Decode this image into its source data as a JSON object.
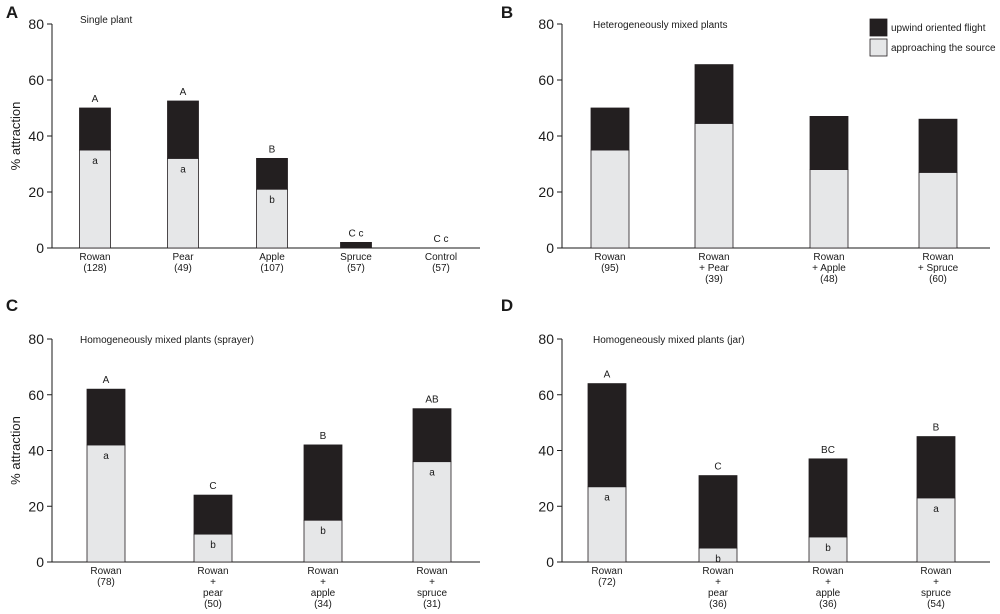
{
  "colors": {
    "upwind": "#231f20",
    "approach": "#e6e7e8",
    "outline": "#231f20"
  },
  "legend": {
    "upwind": "upwind oriented flight",
    "approach": "approaching the source"
  },
  "chart_data": [
    {
      "panel": "A",
      "title": "Single plant",
      "type": "bar",
      "stacked": true,
      "ylabel": "% attraction",
      "ylim": [
        0,
        80
      ],
      "yticks": [
        0,
        20,
        40,
        60,
        80
      ],
      "categories": [
        {
          "lines": [
            "Rowan",
            "(128)"
          ]
        },
        {
          "lines": [
            "Pear",
            "(49)"
          ]
        },
        {
          "lines": [
            "Apple",
            "(107)"
          ]
        },
        {
          "lines": [
            "Spruce",
            "(57)"
          ]
        },
        {
          "lines": [
            "Control",
            "(57)"
          ]
        }
      ],
      "series": [
        {
          "name": "approaching the source",
          "values": [
            35,
            32,
            21,
            0,
            0
          ]
        },
        {
          "name": "upwind oriented flight",
          "values": [
            15,
            20.5,
            11,
            2,
            0
          ]
        }
      ],
      "totals": [
        50,
        52.5,
        32,
        2,
        0
      ],
      "top_letters": [
        "A",
        "A",
        "B",
        "C c",
        "C c"
      ],
      "inner_letters": [
        "a",
        "a",
        "b",
        "",
        ""
      ]
    },
    {
      "panel": "B",
      "title": "Heterogeneously mixed plants",
      "type": "bar",
      "stacked": true,
      "ylabel": "",
      "ylim": [
        0,
        80
      ],
      "yticks": [
        0,
        20,
        40,
        60,
        80
      ],
      "categories": [
        {
          "lines": [
            "Rowan",
            "(95)"
          ]
        },
        {
          "lines": [
            "Rowan",
            "+ Pear",
            "(39)"
          ]
        },
        {
          "lines": [
            "Rowan",
            "+ Apple",
            "(48)"
          ]
        },
        {
          "lines": [
            "Rowan",
            "+ Spruce",
            "(60)"
          ]
        }
      ],
      "series": [
        {
          "name": "approaching the source",
          "values": [
            35,
            44.5,
            28,
            27
          ]
        },
        {
          "name": "upwind oriented flight",
          "values": [
            15,
            21,
            19,
            19
          ]
        }
      ],
      "totals": [
        50,
        65.5,
        47,
        46
      ],
      "top_letters": [
        "",
        "",
        "",
        ""
      ],
      "inner_letters": [
        "",
        "",
        "",
        ""
      ],
      "legend_position": "top-right"
    },
    {
      "panel": "C",
      "title": "Homogeneously mixed plants (sprayer)",
      "type": "bar",
      "stacked": true,
      "ylabel": "% attraction",
      "ylim": [
        0,
        80
      ],
      "yticks": [
        0,
        20,
        40,
        60,
        80
      ],
      "categories": [
        {
          "lines": [
            "Rowan",
            "(78)"
          ]
        },
        {
          "lines": [
            "Rowan",
            "+",
            "pear",
            "(50)"
          ]
        },
        {
          "lines": [
            "Rowan",
            "+",
            "apple",
            "(34)"
          ]
        },
        {
          "lines": [
            "Rowan",
            "+",
            "spruce",
            "(31)"
          ]
        }
      ],
      "series": [
        {
          "name": "approaching the source",
          "values": [
            42,
            10,
            15,
            36
          ]
        },
        {
          "name": "upwind oriented flight",
          "values": [
            20,
            14,
            27,
            19
          ]
        }
      ],
      "totals": [
        62,
        24,
        42,
        55
      ],
      "top_letters": [
        "A",
        "C",
        "B",
        "AB"
      ],
      "inner_letters": [
        "a",
        "b",
        "b",
        "a"
      ]
    },
    {
      "panel": "D",
      "title": "Homogeneously mixed plants (jar)",
      "type": "bar",
      "stacked": true,
      "ylabel": "",
      "ylim": [
        0,
        80
      ],
      "yticks": [
        0,
        20,
        40,
        60,
        80
      ],
      "categories": [
        {
          "lines": [
            "Rowan",
            "(72)"
          ]
        },
        {
          "lines": [
            "Rowan",
            "+",
            "pear",
            "(36)"
          ]
        },
        {
          "lines": [
            "Rowan",
            "+",
            "apple",
            "(36)"
          ]
        },
        {
          "lines": [
            "Rowan",
            "+",
            "spruce",
            "(54)"
          ]
        }
      ],
      "series": [
        {
          "name": "approaching the source",
          "values": [
            27,
            5,
            9,
            23
          ]
        },
        {
          "name": "upwind oriented flight",
          "values": [
            37,
            26,
            28,
            22
          ]
        }
      ],
      "totals": [
        64,
        31,
        37,
        45
      ],
      "top_letters": [
        "A",
        "C",
        "BC",
        "B"
      ],
      "inner_letters": [
        "a",
        "b",
        "b",
        "a"
      ]
    }
  ]
}
